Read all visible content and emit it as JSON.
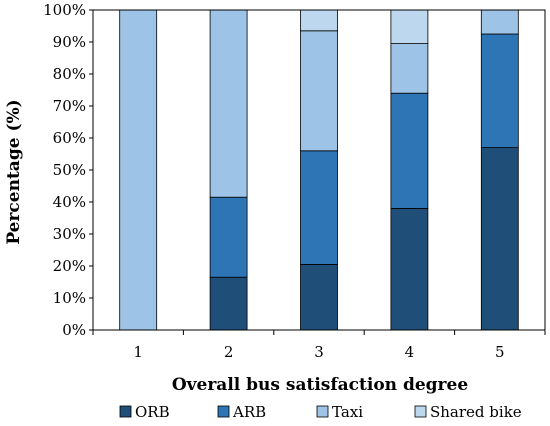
{
  "chart_data": {
    "type": "bar",
    "stacked": true,
    "normalized": true,
    "categories": [
      "1",
      "2",
      "3",
      "4",
      "5"
    ],
    "xlabel": "Overall bus satisfaction degree",
    "ylabel": "Percentage (%)",
    "ylim": [
      0,
      100
    ],
    "yticks": [
      "0%",
      "10%",
      "20%",
      "30%",
      "40%",
      "50%",
      "60%",
      "70%",
      "80%",
      "90%",
      "100%"
    ],
    "grid": false,
    "legend_position": "bottom",
    "series": [
      {
        "name": "ORB",
        "color": "#1f4e79",
        "values": [
          0,
          16.5,
          20.5,
          38,
          57
        ]
      },
      {
        "name": "ARB",
        "color": "#2e75b6",
        "values": [
          0,
          25,
          35.5,
          36,
          35.5
        ]
      },
      {
        "name": "Taxi",
        "color": "#9dc3e6",
        "values": [
          100,
          58.5,
          37.5,
          15.5,
          7.5
        ]
      },
      {
        "name": "Shared bike",
        "color": "#bdd7ee",
        "values": [
          0,
          0,
          6.5,
          10.5,
          0
        ]
      }
    ]
  }
}
